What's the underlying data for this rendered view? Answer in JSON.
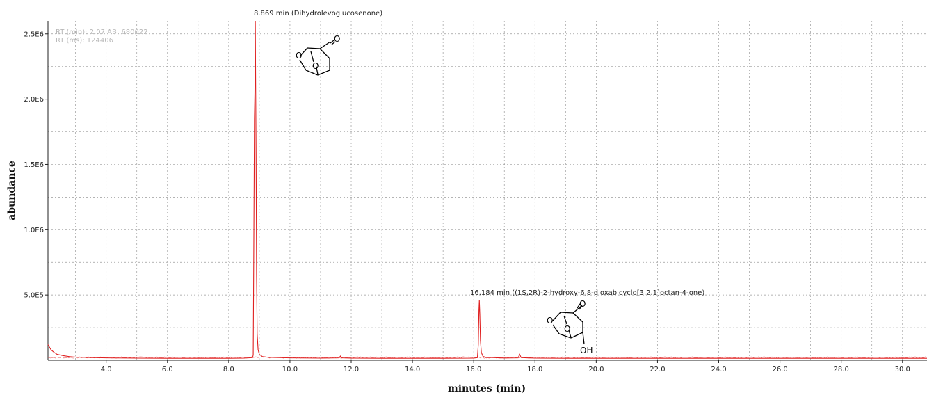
{
  "chart_data": {
    "type": "line",
    "xlabel": "minutes (min)",
    "ylabel": "abundance",
    "xlim": [
      2.1,
      30.8
    ],
    "ylim": [
      0,
      2600000.0
    ],
    "x_ticks": [
      4.0,
      6.0,
      8.0,
      10.0,
      12.0,
      14.0,
      16.0,
      18.0,
      20.0,
      22.0,
      24.0,
      26.0,
      28.0,
      30.0
    ],
    "x_tick_labels": [
      "4.0",
      "6.0",
      "8.0",
      "10.0",
      "12.0",
      "14.0",
      "16.0",
      "18.0",
      "20.0",
      "22.0",
      "24.0",
      "26.0",
      "28.0",
      "30.0"
    ],
    "y_ticks": [
      500000,
      1000000,
      1500000,
      2000000,
      2500000
    ],
    "y_tick_labels": [
      "5.0E5",
      "1.0E6",
      "1.5E6",
      "2.0E6",
      "2.5E6"
    ],
    "grid": true,
    "line_color": "#e02020",
    "series": [
      {
        "x": [
          2.1,
          2.2,
          2.3,
          2.4,
          2.6,
          2.8,
          3.0,
          3.3,
          3.6,
          4.0,
          5.0,
          6.0,
          7.0,
          8.0,
          8.5,
          8.78,
          8.8,
          8.82,
          8.84,
          8.855,
          8.869,
          8.88,
          8.895,
          8.91,
          8.93,
          8.96,
          9.0,
          9.1,
          9.3,
          10.0,
          11.0,
          11.6,
          11.65,
          11.7,
          12.0,
          13.0,
          14.0,
          15.0,
          16.0,
          16.12,
          16.15,
          16.17,
          16.184,
          16.2,
          16.22,
          16.25,
          16.3,
          16.4,
          17.0,
          17.45,
          17.5,
          17.55,
          18.0,
          19.0,
          20.0,
          22.0,
          24.0,
          26.0,
          28.0,
          30.0,
          30.8
        ],
        "y": [
          120000,
          80000,
          60000,
          45000,
          35000,
          28000,
          24000,
          22000,
          20000,
          18000,
          16000,
          15000,
          15000,
          15000,
          16000,
          20000,
          40000,
          900000,
          1850000,
          2050000,
          2600000,
          2150000,
          1550000,
          650000,
          200000,
          80000,
          45000,
          28000,
          22000,
          18000,
          16000,
          18000,
          32000,
          18000,
          16000,
          15000,
          15000,
          15000,
          16000,
          20000,
          120000,
          380000,
          460000,
          350000,
          150000,
          60000,
          30000,
          22000,
          17000,
          18000,
          45000,
          20000,
          16000,
          15000,
          15000,
          15000,
          15000,
          15000,
          15000,
          15000,
          15000
        ]
      }
    ]
  },
  "info_box": {
    "line1": "RT (min): 2.07 AB: 680022",
    "line2": "RT (ms): 124406"
  },
  "annotations": {
    "peak1_label": "8.869 min (Dihydrolevoglucosenone)",
    "peak2_label": "16.184 min ((1S,2R)-2-hydroxy-6,8-dioxabicyclo[3.2.1]octan-4-one)",
    "atom_o": "O",
    "atom_oh": "OH"
  }
}
